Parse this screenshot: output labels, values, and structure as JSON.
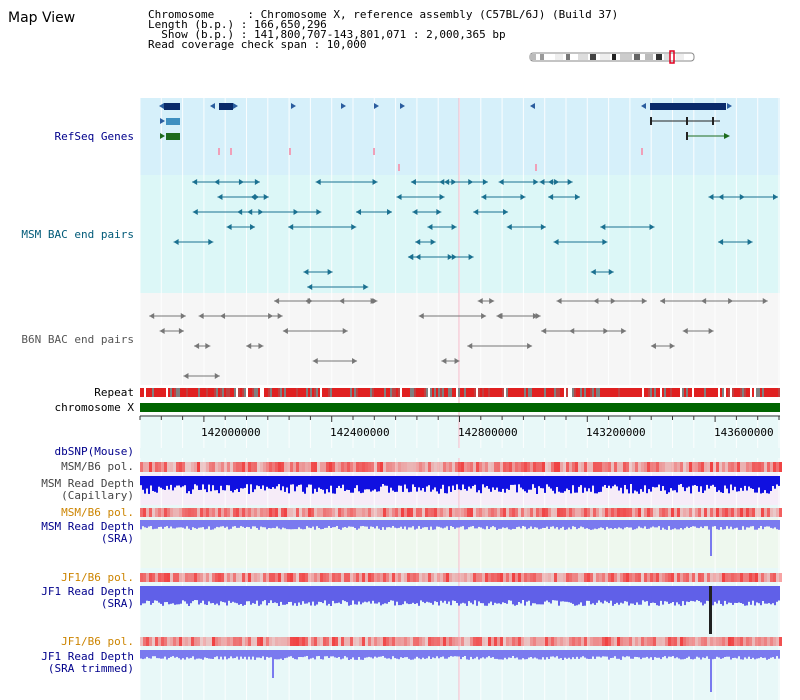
{
  "page_title": "Map View",
  "info": {
    "line1": "Chromosome     : Chromosome X, reference assembly (C57BL/6J) (Build 37)",
    "line2": "Length (b.p.) : 166,650,296",
    "line3": "  Show (b.p.) : 141,800,707-143,801,071 : 2,000,365 bp",
    "line4": "Read coverage check span : 10,000"
  },
  "tracks": {
    "refseq": "RefSeq Genes",
    "msm_bac": "MSM BAC end pairs",
    "b6n_bac": "B6N BAC end pairs",
    "repeat": "Repeat",
    "chromosome": "chromosome X",
    "dbsnp": "dbSNP(Mouse)",
    "msm_b6_pol_1": "MSM/B6 pol.",
    "msm_depth_cap_1": "MSM Read Depth",
    "msm_depth_cap_2": "(Capillary)",
    "msm_b6_pol_2": "MSM/B6 pol.",
    "msm_depth_sra_1": "MSM Read Depth",
    "msm_depth_sra_2": "(SRA)",
    "jf1_b6_pol_1": "JF1/B6 pol.",
    "jf1_depth_sra_1": "JF1 Read Depth",
    "jf1_depth_sra_2": "(SRA)",
    "jf1_b6_pol_2": "JF1/B6 pol.",
    "jf1_depth_trim_1": "JF1 Read Depth",
    "jf1_depth_trim_2": "(SRA trimmed)"
  },
  "axis_ticks": [
    "142000000",
    "142400000",
    "142800000",
    "143200000",
    "143600000"
  ],
  "colors": {
    "refseq_bg": "#d6f0fa",
    "msm_bg": "#dcf7f7",
    "b6n_bg": "#f6f6f6",
    "lower_bg": "#e8f8f8",
    "gene_dark": "#0a2a6a",
    "gene_mid": "#3e8fc0",
    "gene_green": "#1d6b1d",
    "chrom_green": "#006400",
    "depth_blue": "#3030e0",
    "pol_red": "#f04040"
  }
}
